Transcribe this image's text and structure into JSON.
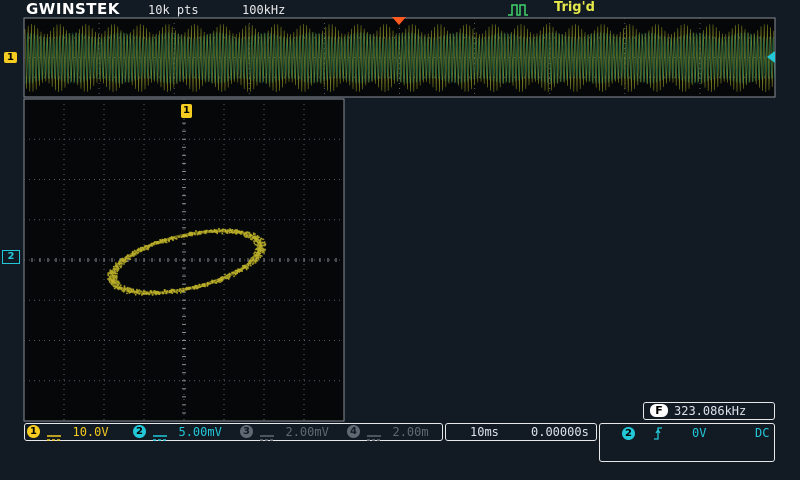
{
  "header": {
    "brand": "GWINSTEK",
    "record_length": "10k pts",
    "sample_rate": "100kHz",
    "trigger_status": "Trig'd"
  },
  "markers": {
    "ch1_label": "1",
    "ch2_label": "2"
  },
  "channels": [
    {
      "num": "1",
      "scale": "10.0V",
      "state": "on",
      "color": "#f5cc1f"
    },
    {
      "num": "2",
      "scale": "5.00mV",
      "state": "on",
      "color": "#23c8d8"
    },
    {
      "num": "3",
      "scale": "2.00mV",
      "state": "off",
      "color": "#606873"
    },
    {
      "num": "4",
      "scale": "2.00m",
      "state": "off",
      "color": "#606873"
    }
  ],
  "timebase": {
    "scale": "10ms",
    "position": "0.00000s"
  },
  "frequency": {
    "badge": "F",
    "value": "323.086kHz"
  },
  "trigger": {
    "source": "2",
    "slope_icon": "rising-edge-icon",
    "level": "0V",
    "coupling": "DC"
  },
  "display": {
    "mode": "XY",
    "ellipse_tilt_deg": -13,
    "ellipse_semi_major_div": 1.9,
    "ellipse_semi_minor_div": 0.55
  },
  "colors": {
    "ch1": "#f5cc1f",
    "ch2": "#23c8d8",
    "trigger_marker": "#ff5a1f",
    "trace": "#c9bb2c",
    "grid": "#5a5f66"
  }
}
